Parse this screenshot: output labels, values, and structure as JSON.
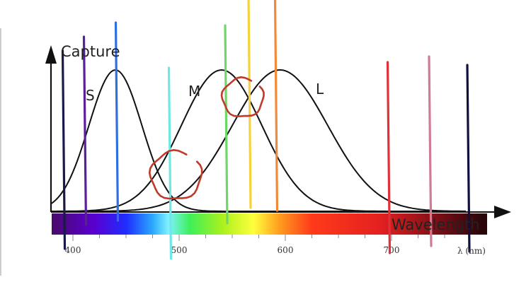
{
  "chart_data": {
    "type": "line",
    "y_axis_label": "Capture",
    "x_axis_label": "Wavelength",
    "x_unit_label": "λ (nm)",
    "x_range": [
      380,
      790
    ],
    "x_ticks": [
      400,
      500,
      600,
      700
    ],
    "x_tick_labels": [
      "400",
      "500",
      "600",
      "700"
    ],
    "grid": false,
    "curves": [
      {
        "label": "S",
        "peak_nm": 440,
        "width": 25,
        "line_color": "#111111"
      },
      {
        "label": "M",
        "peak_nm": 540,
        "width": 38,
        "line_color": "#111111"
      },
      {
        "label": "L",
        "peak_nm": 595,
        "width": 45,
        "line_color": "#111111"
      }
    ],
    "spectrum_stops": [
      {
        "nm": 380,
        "color": "#4a0a6a"
      },
      {
        "nm": 420,
        "color": "#5a00d0"
      },
      {
        "nm": 450,
        "color": "#1f2cff"
      },
      {
        "nm": 475,
        "color": "#2aa8ff"
      },
      {
        "nm": 490,
        "color": "#7ff2ff"
      },
      {
        "nm": 510,
        "color": "#3df05a"
      },
      {
        "nm": 540,
        "color": "#a8f01e"
      },
      {
        "nm": 570,
        "color": "#ffff3c"
      },
      {
        "nm": 595,
        "color": "#ff9a1e"
      },
      {
        "nm": 625,
        "color": "#ff3a1a"
      },
      {
        "nm": 690,
        "color": "#e32020"
      },
      {
        "nm": 760,
        "color": "#5a0a12"
      },
      {
        "nm": 785,
        "color": "#2a0508"
      }
    ],
    "marker_lines": [
      {
        "nm": 391,
        "color": "#1a1a4a",
        "y_top": 1.14,
        "y_bottom": -0.26
      },
      {
        "nm": 411,
        "color": "#5a1f9a",
        "y_top": 1.24,
        "y_bottom": -0.09
      },
      {
        "nm": 441,
        "color": "#2f6fe0",
        "y_top": 1.34,
        "y_bottom": -0.06
      },
      {
        "nm": 491,
        "color": "#6fe6e8",
        "y_top": 1.02,
        "y_bottom": -0.33
      },
      {
        "nm": 544,
        "color": "#6fd66a",
        "y_top": 1.32,
        "y_bottom": -0.08
      },
      {
        "nm": 566,
        "color": "#f5d23c",
        "y_top": 1.53,
        "y_bottom": 0.03
      },
      {
        "nm": 591,
        "color": "#f08a3a",
        "y_top": 1.51,
        "y_bottom": 0.01
      },
      {
        "nm": 697,
        "color": "#e0303a",
        "y_top": 1.06,
        "y_bottom": -0.29
      },
      {
        "nm": 736,
        "color": "#d07a94",
        "y_top": 1.1,
        "y_bottom": -0.24
      },
      {
        "nm": 772,
        "color": "#101040",
        "y_top": 1.04,
        "y_bottom": -0.28
      }
    ],
    "circled_regions": [
      {
        "nm": 497,
        "y": 0.26,
        "color": "#c0392b"
      },
      {
        "nm": 560,
        "y": 0.81,
        "color": "#c0392b"
      }
    ]
  }
}
